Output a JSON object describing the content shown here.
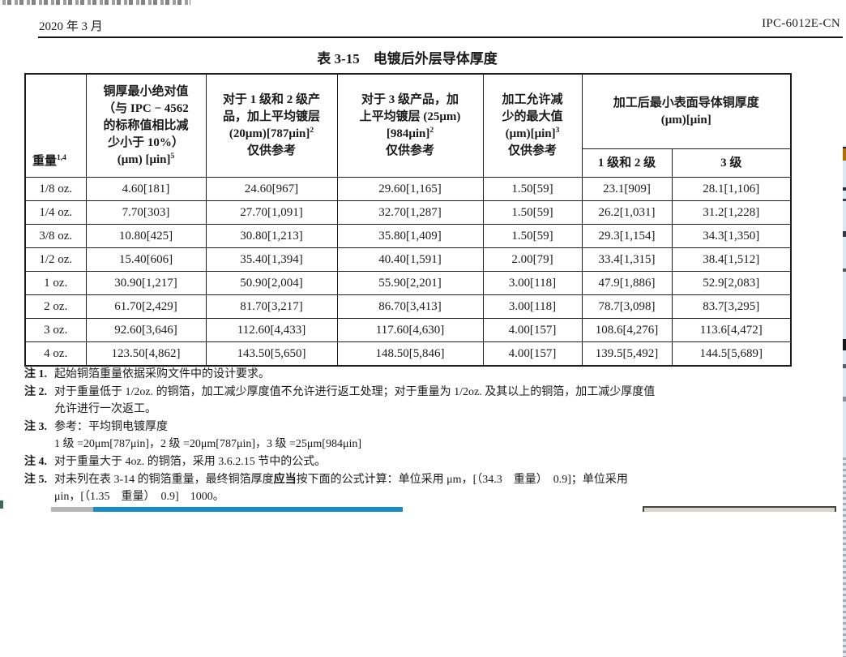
{
  "page_header": {
    "date": "2020 年 3 月",
    "doc_number": "IPC-6012E-CN"
  },
  "table": {
    "title": "表 3-15　电镀后外层导体厚度",
    "headers": {
      "weight": {
        "label": "重量",
        "sup": "1,4"
      },
      "min_abs": {
        "l1": "铜厚最小绝对值",
        "l2": "（与 IPC − 4562",
        "l3": "的标称值相比减",
        "l4": "少小于 10%）",
        "l5": "(μm) [μin]",
        "sup": "5"
      },
      "class12": {
        "l1": "对于 1 级和 2 级产",
        "l2": "品，加上平均镀层",
        "l3": "(20μm)[787μin]",
        "sup": "2",
        "l4": "仅供参考"
      },
      "class3": {
        "l1": "对于 3 级产品，加",
        "l2": "上平均镀层 (25μm)",
        "l3": "[984μin]",
        "sup": "2",
        "l4": "仅供参考"
      },
      "reduction": {
        "l1": "加工允许减",
        "l2": "少的最大值",
        "l3": "(μm)[μin]",
        "sup": "3",
        "l4": "仅供参考"
      },
      "final_group": {
        "l1": "加工后最小表面导体铜厚度",
        "l2": "(μm)[μin]",
        "sub12": "1 级和 2 级",
        "sub3": "3 级"
      }
    },
    "row_keys": [
      "weight",
      "min_abs",
      "class12",
      "class3",
      "reduction",
      "final12",
      "final3"
    ],
    "rows": [
      {
        "weight": "1/8 oz.",
        "min_abs": "4.60[181]",
        "class12": "24.60[967]",
        "class3": "29.60[1,165]",
        "reduction": "1.50[59]",
        "final12": "23.1[909]",
        "final3": "28.1[1,106]"
      },
      {
        "weight": "1/4 oz.",
        "min_abs": "7.70[303]",
        "class12": "27.70[1,091]",
        "class3": "32.70[1,287]",
        "reduction": "1.50[59]",
        "final12": "26.2[1,031]",
        "final3": "31.2[1,228]"
      },
      {
        "weight": "3/8 oz.",
        "min_abs": "10.80[425]",
        "class12": "30.80[1,213]",
        "class3": "35.80[1,409]",
        "reduction": "1.50[59]",
        "final12": "29.3[1,154]",
        "final3": "34.3[1,350]"
      },
      {
        "weight": "1/2 oz.",
        "min_abs": "15.40[606]",
        "class12": "35.40[1,394]",
        "class3": "40.40[1,591]",
        "reduction": "2.00[79]",
        "final12": "33.4[1,315]",
        "final3": "38.4[1,512]"
      },
      {
        "weight": "1 oz.",
        "min_abs": "30.90[1,217]",
        "class12": "50.90[2,004]",
        "class3": "55.90[2,201]",
        "reduction": "3.00[118]",
        "final12": "47.9[1,886]",
        "final3": "52.9[2,083]"
      },
      {
        "weight": "2 oz.",
        "min_abs": "61.70[2,429]",
        "class12": "81.70[3,217]",
        "class3": "86.70[3,413]",
        "reduction": "3.00[118]",
        "final12": "78.7[3,098]",
        "final3": "83.7[3,295]"
      },
      {
        "weight": "3 oz.",
        "min_abs": "92.60[3,646]",
        "class12": "112.60[4,433]",
        "class3": "117.60[4,630]",
        "reduction": "4.00[157]",
        "final12": "108.6[4,276]",
        "final3": "113.6[4,472]"
      },
      {
        "weight": "4 oz.",
        "min_abs": "123.50[4,862]",
        "class12": "143.50[5,650]",
        "class3": "148.50[5,846]",
        "reduction": "4.00[157]",
        "final12": "139.5[5,492]",
        "final3": "144.5[5,689]"
      }
    ]
  },
  "notes": {
    "n1": {
      "label": "注 1.",
      "text": "起始铜箔重量依据采购文件中的设计要求。"
    },
    "n2": {
      "label": "注 2.",
      "line1": "对于重量低于 1/2oz. 的铜箔，加工减少厚度值不允许进行返工处理；对于重量为 1/2oz. 及其以上的铜箔，加工减少厚度值",
      "line2": "允许进行一次返工。"
    },
    "n3": {
      "label": "注 3.",
      "text": "参考：平均铜电镀厚度"
    },
    "n3b": {
      "text": "1 级 =20μm[787μin]，2 级 =20μm[787μin]，3 级 =25μm[984μin]"
    },
    "n4": {
      "label": "注 4.",
      "text": "对于重量大于 4oz. 的铜箔，采用 3.6.2.15 节中的公式。"
    },
    "n5": {
      "label": "注 5.",
      "pre": "对未列在表 3-14 的铜箔重量，最终铜箔厚度",
      "bold": "应当",
      "post1": "按下面的公式计算：单位采用 μm，[（34.3　重量）　0.9]；单位采用",
      "post2": "μin，[（1.35　重量）　0.9]　1000。"
    }
  },
  "artifacts": {
    "bottom_bar_blue": "#1b8dc4",
    "bottom_bar_gray": "#b7b7b7",
    "window_fragment_fill": "#d9d6cf",
    "window_fragment_border": "#474340",
    "edge_strip_bg": "#dde9f1",
    "edge_mark_orange": "#b06f00"
  }
}
